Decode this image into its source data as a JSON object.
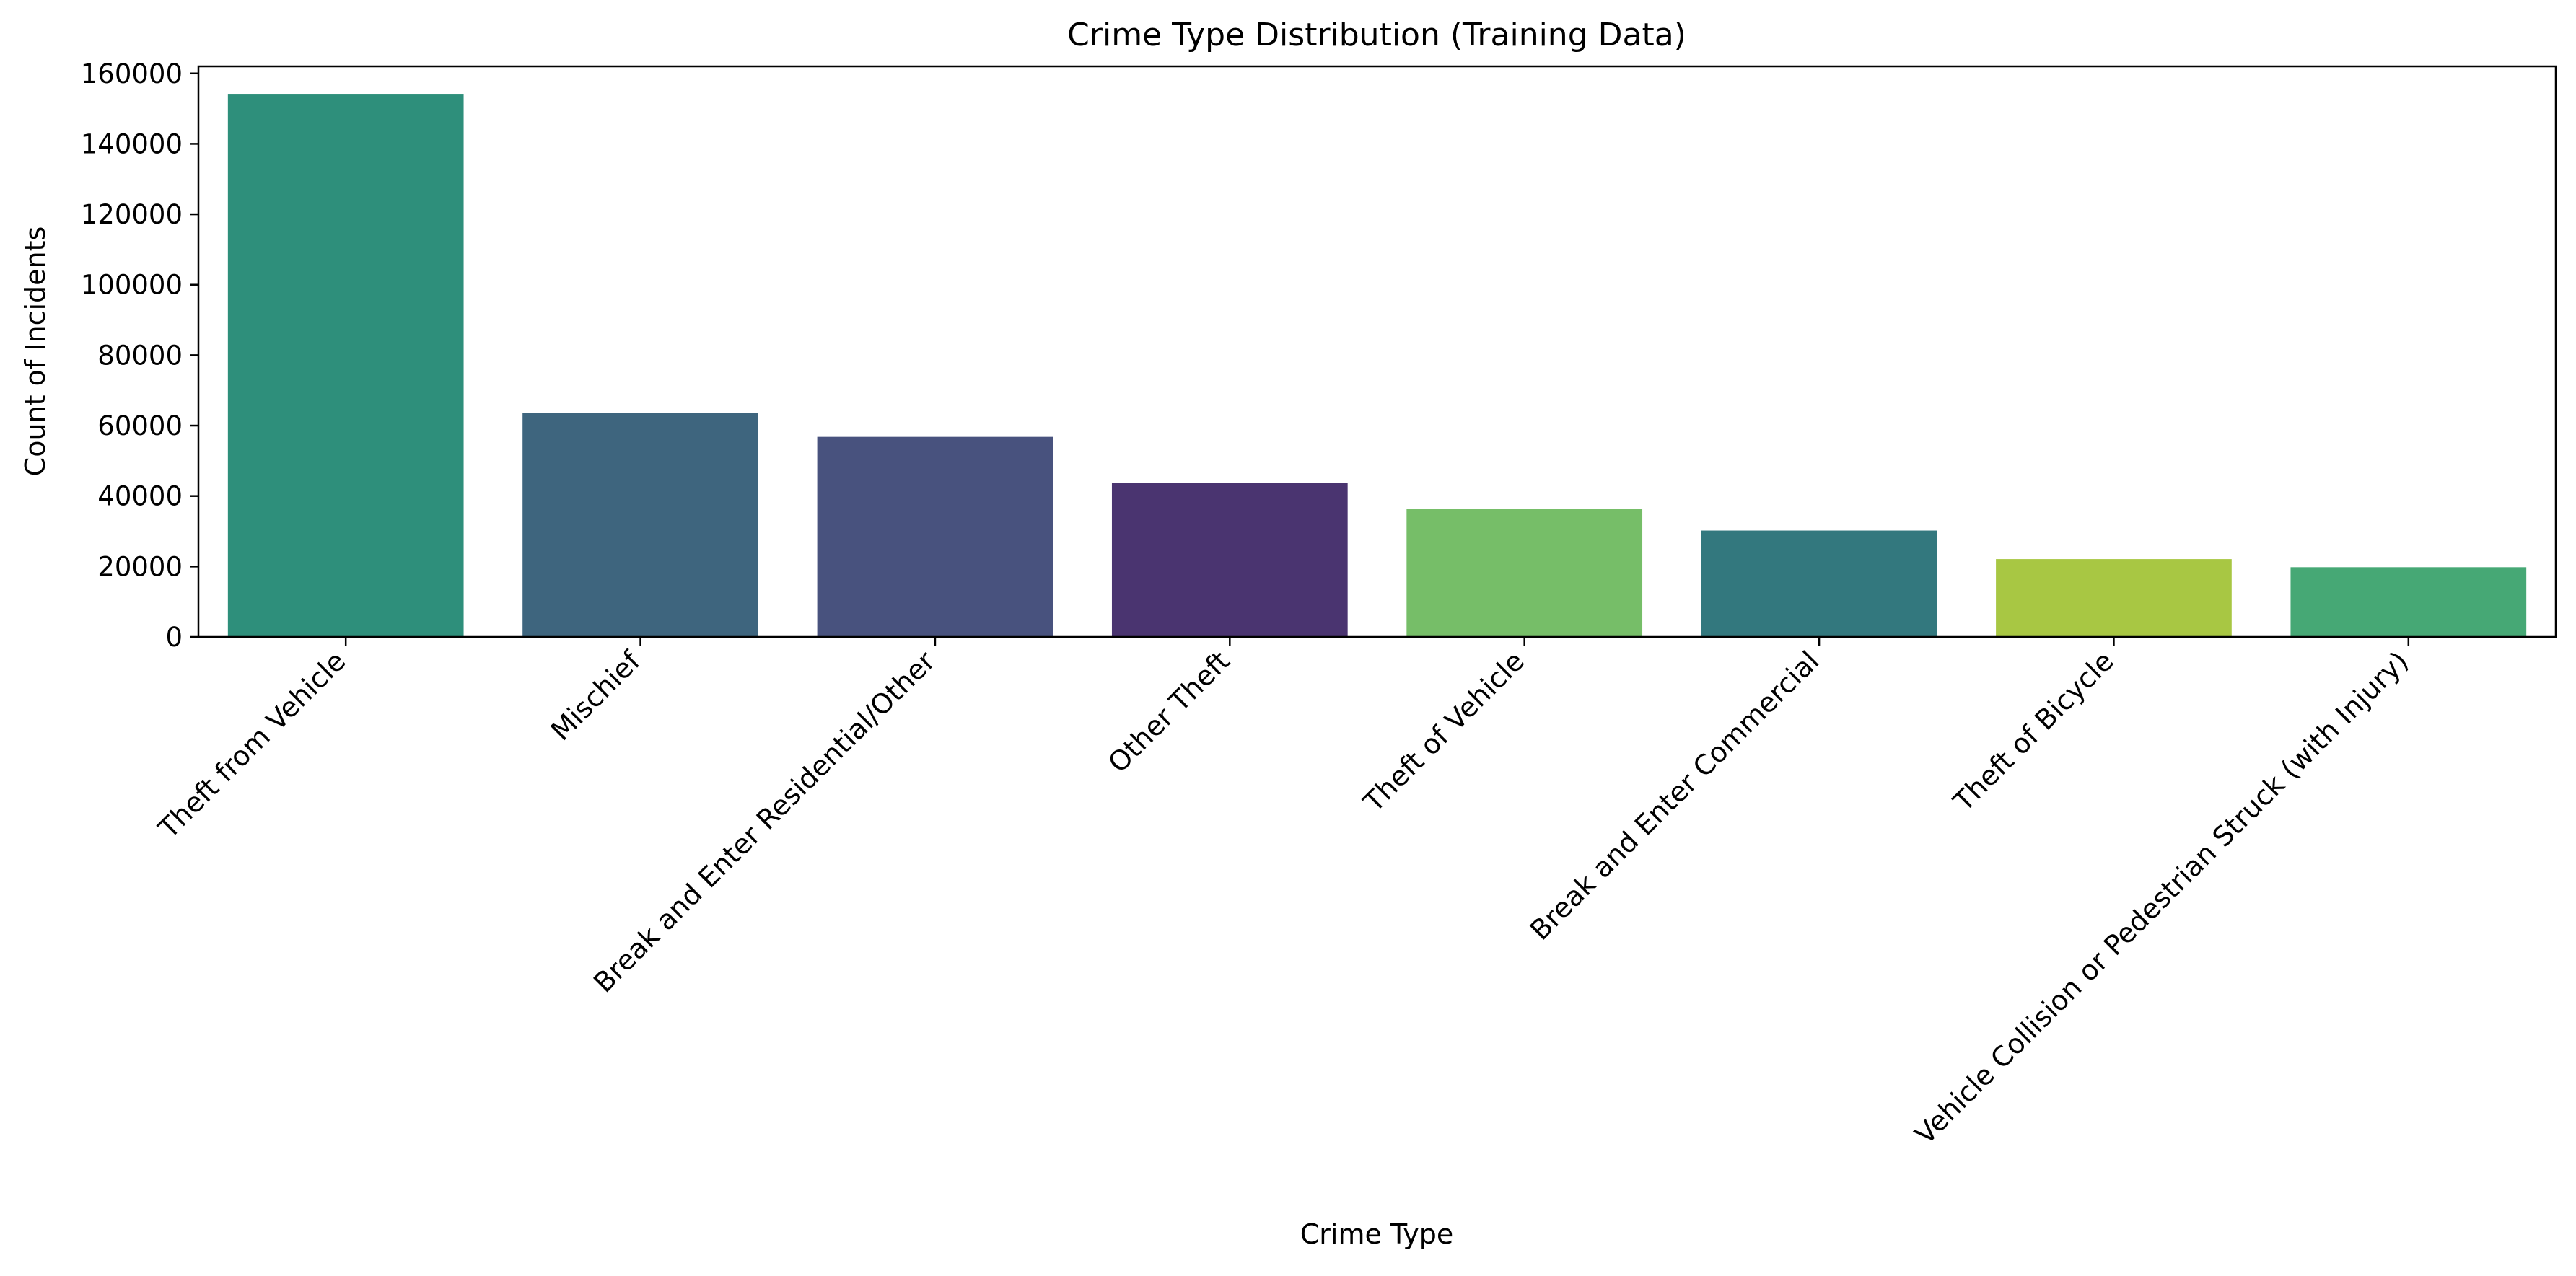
{
  "chart_data": {
    "type": "bar",
    "title": "Crime Type Distribution (Training Data)",
    "xlabel": "Crime Type",
    "ylabel": "Count of Incidents",
    "ylim": [
      0,
      162000
    ],
    "yticks": [
      0,
      20000,
      40000,
      60000,
      80000,
      100000,
      120000,
      140000,
      160000
    ],
    "grid": false,
    "legend": "none",
    "categories": [
      "Theft from Vehicle",
      "Mischief",
      "Break and Enter Residential/Other",
      "Other Theft",
      "Theft of Vehicle",
      "Break and Enter Commercial",
      "Theft of Bicycle",
      "Vehicle Collision or Pedestrian Struck (with Injury)"
    ],
    "values": [
      154000,
      63500,
      56800,
      43800,
      36300,
      30200,
      22100,
      19800
    ],
    "colors": [
      "#2e8f7b",
      "#3e657e",
      "#48527e",
      "#4a3470",
      "#76be68",
      "#33787e",
      "#a8c743",
      "#46a875"
    ]
  }
}
